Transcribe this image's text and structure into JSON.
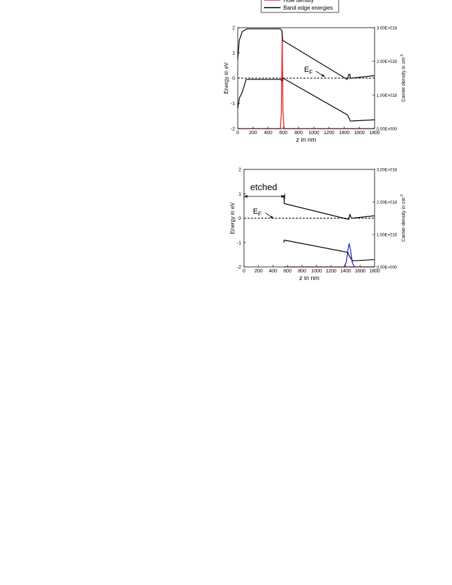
{
  "chart_data": [
    {
      "type": "line",
      "xlabel": "z in nm",
      "ylabel": "Energy in eV",
      "y2label": "Carrier density in cm",
      "y2label_sup": "-3",
      "annotation": "E",
      "annotation_sub": "F",
      "xlim": [
        0,
        1800
      ],
      "xticks": [
        0,
        200,
        400,
        600,
        800,
        1000,
        1200,
        1400,
        1600,
        1800
      ],
      "ylim": [
        -2,
        2
      ],
      "yticks": [
        -2,
        -1,
        0,
        1,
        2
      ],
      "y2lim": [
        0,
        3e+18
      ],
      "y2ticks": [
        {
          "value": 0,
          "label": "0.00E+000"
        },
        {
          "value": 1e+18,
          "label": "1.00E+018"
        },
        {
          "value": 2e+18,
          "label": "2.00E+018"
        },
        {
          "value": 3e+18,
          "label": "3.00E+018"
        }
      ],
      "series": [
        {
          "name": "Hole density",
          "color": "#e8141e",
          "axis": "y2",
          "x": [
            0,
            560,
            575,
            585,
            595,
            610,
            1800
          ],
          "values": [
            0,
            0,
            5e+17,
            2.85e+18,
            5e+17,
            0,
            0
          ]
        },
        {
          "name": "Band edge energies",
          "color": "#000000",
          "x": [
            0,
            20,
            60,
            120,
            560,
            580,
            590,
            1440,
            1460,
            1475,
            1480,
            1500,
            1800
          ],
          "values": [
            0.75,
            1.5,
            1.85,
            1.95,
            1.95,
            1.9,
            1.5,
            -0.05,
            0.15,
            0.15,
            0,
            0,
            0.1
          ]
        },
        {
          "color": "#000000",
          "x": [
            0,
            20,
            60,
            110,
            560,
            585,
            595,
            1440,
            1460,
            1480,
            1800
          ],
          "values": [
            -1.2,
            -0.8,
            -0.55,
            -0.05,
            -0.05,
            -0.1,
            0,
            -1.45,
            -1.55,
            -1.7,
            -1.65
          ]
        },
        {
          "color": "#000000",
          "dash": true,
          "x": [
            0,
            1800
          ],
          "values": [
            0,
            0
          ]
        }
      ]
    },
    {
      "type": "line",
      "xlabel": "z in nm",
      "ylabel": "Energy in eV",
      "y2label": "Carrier density in cm",
      "y2label_sup": "-3",
      "annotation": "E",
      "annotation_sub": "F",
      "region_label": "etched",
      "xlim": [
        0,
        1800
      ],
      "xticks": [
        0,
        200,
        400,
        600,
        800,
        1000,
        1200,
        1400,
        1600,
        1800
      ],
      "ylim": [
        -2,
        2
      ],
      "yticks": [
        -2,
        -1,
        0,
        1,
        2
      ],
      "y2lim": [
        0,
        3e+18
      ],
      "y2ticks": [
        {
          "value": 0,
          "label": "0.00E+000"
        },
        {
          "value": 1e+18,
          "label": "1.00E+018"
        },
        {
          "value": 2e+18,
          "label": "2.00E+018"
        },
        {
          "value": 3e+18,
          "label": "3.00E+018"
        }
      ],
      "series": [
        {
          "color": "#e8141e",
          "axis": "y2",
          "x": [
            550,
            1800
          ],
          "values": [
            0,
            0
          ]
        },
        {
          "color": "#1a1ad0",
          "axis": "y2",
          "x": [
            1380,
            1410,
            1430,
            1450,
            1470,
            1490,
            1520
          ],
          "values": [
            0,
            1.5e+17,
            5e+17,
            7.2e+17,
            5e+17,
            1.5e+17,
            0
          ]
        },
        {
          "color": "#000000",
          "x": [
            550,
            555,
            1440,
            1460,
            1480,
            1500,
            1800
          ],
          "values": [
            0.95,
            0.6,
            -0.05,
            0.15,
            0,
            0,
            0.1
          ]
        },
        {
          "color": "#000000",
          "x": [
            550,
            555,
            1430,
            1460,
            1500,
            1800
          ],
          "values": [
            -1.0,
            -0.9,
            -1.4,
            -1.6,
            -1.75,
            -1.7
          ]
        },
        {
          "color": "#000000",
          "dash": true,
          "x": [
            0,
            1800
          ],
          "values": [
            0,
            0
          ]
        }
      ]
    }
  ]
}
